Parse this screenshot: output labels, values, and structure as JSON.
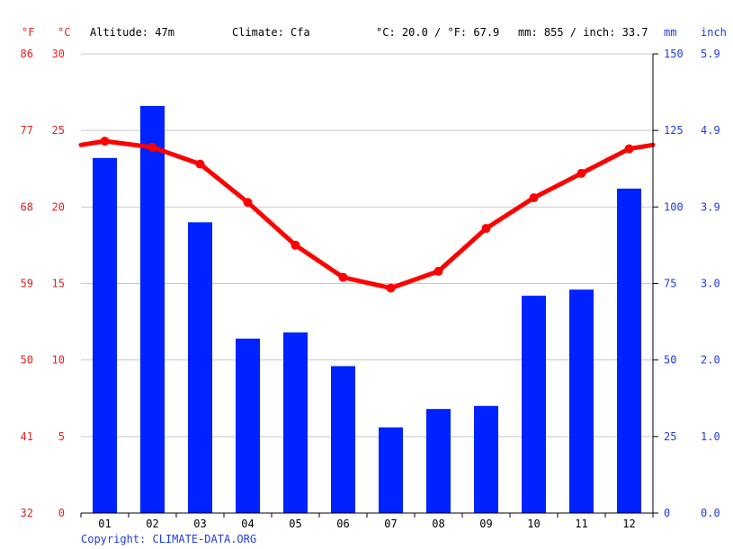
{
  "header": {
    "altitude": "Altitude: 47m",
    "climate": "Climate: Cfa",
    "avg_temp": "°C: 20.0 / °F: 67.9",
    "precip_total": "mm: 855 / inch: 33.7"
  },
  "units": {
    "fahrenheit": "°F",
    "celsius": "°C",
    "mm": "mm",
    "inch": "inch"
  },
  "copyright": "Copyright: CLIMATE-DATA.ORG",
  "colors": {
    "temperature": "#ff0000",
    "precipitation": "#0022ff",
    "grid": "#c8c8c8",
    "left_axis_text": "#e32020",
    "right_axis_text": "#1f3ce0"
  },
  "chart_data": {
    "type": "bar",
    "categories": [
      "01",
      "02",
      "03",
      "04",
      "05",
      "06",
      "07",
      "08",
      "09",
      "10",
      "11",
      "12"
    ],
    "series": [
      {
        "type": "bar",
        "axis": "right",
        "unit": "mm",
        "values": [
          116,
          133,
          95,
          57,
          59,
          48,
          28,
          34,
          35,
          71,
          73,
          106
        ]
      },
      {
        "type": "line",
        "axis": "left",
        "unit": "°C",
        "values": [
          24.3,
          23.9,
          22.8,
          20.3,
          17.5,
          15.4,
          14.7,
          15.8,
          18.6,
          20.6,
          22.2,
          23.8
        ]
      }
    ],
    "y_left_celsius_ticks": [
      "0",
      "5",
      "10",
      "15",
      "20",
      "25",
      "30"
    ],
    "y_left_fahrenheit_ticks": [
      "32",
      "41",
      "50",
      "59",
      "68",
      "77",
      "86"
    ],
    "y_right_mm_ticks": [
      "0",
      "25",
      "50",
      "75",
      "100",
      "125",
      "150"
    ],
    "y_right_inch_ticks": [
      "0.0",
      "1.0",
      "2.0",
      "3.0",
      "3.9",
      "4.9",
      "5.9"
    ],
    "y_left_range": [
      0,
      30
    ],
    "y_right_range": [
      0,
      150
    ],
    "grid": true
  }
}
